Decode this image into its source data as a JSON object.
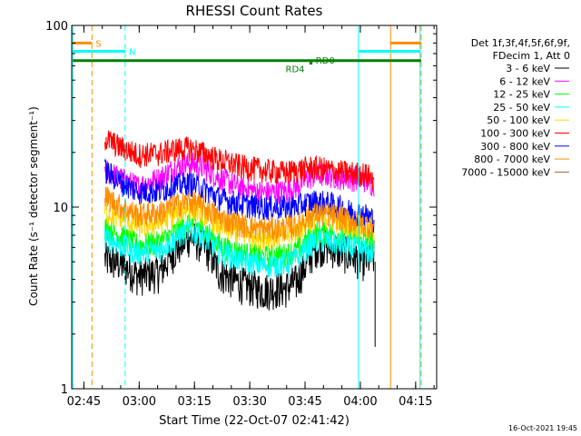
{
  "chart_data": {
    "type": "line",
    "title": "RHESSI Count Rates",
    "xlabel": "Start Time (22-Oct-07 02:41:42)",
    "ylabel": "Count Rate (s⁻¹ detector segment⁻¹)",
    "yscale": "log",
    "ylim": [
      1,
      100
    ],
    "xlim_minutes_after_0241": [
      0,
      99
    ],
    "x_ticks": [
      {
        "label": "02:45",
        "m": 3.3
      },
      {
        "label": "03:00",
        "m": 18.3
      },
      {
        "label": "03:15",
        "m": 33.3
      },
      {
        "label": "03:30",
        "m": 48.3
      },
      {
        "label": "03:45",
        "m": 63.3
      },
      {
        "label": "04:00",
        "m": 78.3
      },
      {
        "label": "04:15",
        "m": 93.3
      }
    ],
    "y_ticks": [
      {
        "label": "1",
        "v": 1
      },
      {
        "label": "10",
        "v": 10
      },
      {
        "label": "100",
        "v": 100
      }
    ],
    "footer_timestamp": "16-Oct-2021 19:45",
    "legend_header": [
      "Det 1f,3f,4f,5f,6f,9f,",
      "FDecim 1, Att 0"
    ],
    "legend_position": "right",
    "series": [
      {
        "name": "3 - 6 keV",
        "color": "#000000",
        "values": [
          [
            9,
            5.2
          ],
          [
            13,
            4.9
          ],
          [
            18,
            4.2
          ],
          [
            24,
            4.4
          ],
          [
            28,
            5.8
          ],
          [
            32,
            6.9
          ],
          [
            36,
            6.2
          ],
          [
            40,
            4.4
          ],
          [
            46,
            3.8
          ],
          [
            52,
            3.5
          ],
          [
            58,
            3.6
          ],
          [
            61,
            3.9
          ],
          [
            64,
            5.0
          ],
          [
            66,
            6.0
          ],
          [
            69,
            6.2
          ],
          [
            72,
            5.8
          ],
          [
            75,
            5.5
          ],
          [
            79,
            5.1
          ],
          [
            82,
            5.3
          ]
        ]
      },
      {
        "name": "6 - 12 keV",
        "color": "#ff00ff",
        "values": [
          [
            9,
            16.0
          ],
          [
            13,
            14.5
          ],
          [
            18,
            13.0
          ],
          [
            24,
            14.5
          ],
          [
            28,
            16.5
          ],
          [
            32,
            17.5
          ],
          [
            36,
            16.5
          ],
          [
            40,
            14.5
          ],
          [
            46,
            12.8
          ],
          [
            52,
            12.0
          ],
          [
            58,
            12.3
          ],
          [
            61,
            13.0
          ],
          [
            64,
            14.5
          ],
          [
            66,
            15.0
          ],
          [
            69,
            15.2
          ],
          [
            72,
            14.8
          ],
          [
            75,
            14.5
          ],
          [
            79,
            14.3
          ],
          [
            82,
            13.5
          ]
        ]
      },
      {
        "name": "12 - 25 keV",
        "color": "#00ff00",
        "values": [
          [
            9,
            7.8
          ],
          [
            13,
            7.0
          ],
          [
            18,
            6.2
          ],
          [
            24,
            6.4
          ],
          [
            28,
            7.3
          ],
          [
            32,
            8.3
          ],
          [
            36,
            7.6
          ],
          [
            40,
            6.2
          ],
          [
            46,
            5.6
          ],
          [
            52,
            5.3
          ],
          [
            58,
            5.5
          ],
          [
            61,
            5.8
          ],
          [
            64,
            6.6
          ],
          [
            66,
            7.2
          ],
          [
            69,
            7.3
          ],
          [
            72,
            7.0
          ],
          [
            75,
            6.8
          ],
          [
            79,
            6.6
          ],
          [
            82,
            6.5
          ]
        ]
      },
      {
        "name": "25 - 50 keV",
        "color": "#00ffff",
        "values": [
          [
            9,
            6.8
          ],
          [
            13,
            6.2
          ],
          [
            18,
            5.6
          ],
          [
            24,
            5.9
          ],
          [
            28,
            6.7
          ],
          [
            32,
            7.5
          ],
          [
            36,
            6.9
          ],
          [
            40,
            5.7
          ],
          [
            46,
            5.1
          ],
          [
            52,
            4.8
          ],
          [
            58,
            4.9
          ],
          [
            61,
            5.2
          ],
          [
            64,
            6.1
          ],
          [
            66,
            6.5
          ],
          [
            69,
            6.6
          ],
          [
            72,
            6.3
          ],
          [
            75,
            6.0
          ],
          [
            79,
            5.8
          ],
          [
            82,
            5.6
          ]
        ]
      },
      {
        "name": "50 - 100 keV",
        "color": "#ffd700",
        "values": [
          [
            9,
            9.5
          ],
          [
            13,
            8.8
          ],
          [
            18,
            7.9
          ],
          [
            24,
            8.2
          ],
          [
            28,
            9.2
          ],
          [
            32,
            10.0
          ],
          [
            36,
            9.3
          ],
          [
            40,
            7.9
          ],
          [
            46,
            7.2
          ],
          [
            52,
            6.9
          ],
          [
            58,
            7.0
          ],
          [
            61,
            7.4
          ],
          [
            64,
            8.4
          ],
          [
            66,
            8.8
          ],
          [
            69,
            8.8
          ],
          [
            72,
            8.5
          ],
          [
            75,
            8.2
          ],
          [
            79,
            7.8
          ],
          [
            82,
            7.5
          ]
        ]
      },
      {
        "name": "100 - 300 keV",
        "color": "#ff0000",
        "values": [
          [
            9,
            24.0
          ],
          [
            13,
            21.5
          ],
          [
            18,
            19.5
          ],
          [
            24,
            19.8
          ],
          [
            28,
            20.8
          ],
          [
            32,
            21.2
          ],
          [
            36,
            19.8
          ],
          [
            40,
            18.2
          ],
          [
            46,
            16.8
          ],
          [
            52,
            16.0
          ],
          [
            58,
            15.5
          ],
          [
            61,
            16.0
          ],
          [
            64,
            16.5
          ],
          [
            66,
            16.6
          ],
          [
            69,
            16.2
          ],
          [
            72,
            15.8
          ],
          [
            75,
            15.5
          ],
          [
            79,
            15.3
          ],
          [
            82,
            14.5
          ]
        ]
      },
      {
        "name": "300 - 800 keV",
        "color": "#0000ff",
        "values": [
          [
            9,
            16.0
          ],
          [
            13,
            13.8
          ],
          [
            18,
            12.2
          ],
          [
            24,
            12.3
          ],
          [
            28,
            13.2
          ],
          [
            32,
            13.6
          ],
          [
            36,
            12.6
          ],
          [
            40,
            11.2
          ],
          [
            46,
            10.4
          ],
          [
            52,
            10.0
          ],
          [
            58,
            10.0
          ],
          [
            61,
            10.2
          ],
          [
            64,
            10.6
          ],
          [
            66,
            10.8
          ],
          [
            69,
            10.6
          ],
          [
            72,
            10.2
          ],
          [
            75,
            9.6
          ],
          [
            79,
            9.2
          ],
          [
            82,
            8.6
          ]
        ]
      },
      {
        "name": "800 - 7000 keV",
        "color": "#ff8c00",
        "values": [
          [
            9,
            11.5
          ],
          [
            13,
            10.2
          ],
          [
            18,
            9.1
          ],
          [
            24,
            9.4
          ],
          [
            28,
            10.3
          ],
          [
            32,
            10.8
          ],
          [
            36,
            10.0
          ],
          [
            40,
            8.8
          ],
          [
            46,
            8.0
          ],
          [
            52,
            7.6
          ],
          [
            58,
            7.7
          ],
          [
            61,
            8.0
          ],
          [
            64,
            8.8
          ],
          [
            66,
            9.2
          ],
          [
            69,
            9.2
          ],
          [
            72,
            8.9
          ],
          [
            75,
            8.5
          ],
          [
            79,
            8.1
          ],
          [
            82,
            7.8
          ]
        ]
      },
      {
        "name": "7000 - 15000 keV",
        "color": "#996633",
        "values": []
      }
    ],
    "flags": [
      {
        "label": "S",
        "color": "#ff8c00",
        "value": 80
      },
      {
        "label": "N",
        "color": "#00ffff",
        "value": 72
      },
      {
        "label": "RD0",
        "color": "#008000",
        "value": 64
      },
      {
        "label": "RD4",
        "color": "#008000",
        "value": 62
      }
    ],
    "grid": false
  }
}
